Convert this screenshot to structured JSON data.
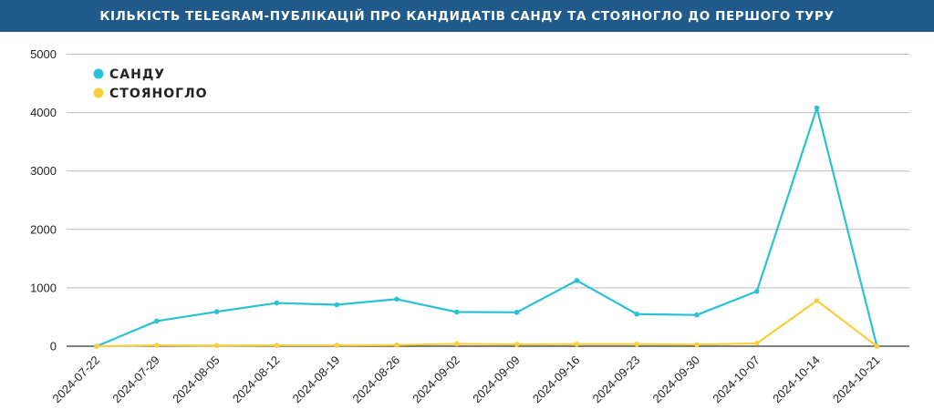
{
  "chart_data": {
    "type": "line",
    "title": "КІЛЬКІСТЬ TELEGRAM-ПУБЛІКАЦІЙ ПРО КАНДИДАТІВ САНДУ ТА СТОЯНОГЛО ДО ПЕРШОГО ТУРУ",
    "x": [
      "2024-07-22",
      "2024-07-29",
      "2024-08-05",
      "2024-08-12",
      "2024-08-19",
      "2024-08-26",
      "2024-09-02",
      "2024-09-09",
      "2024-09-16",
      "2024-09-23",
      "2024-09-30",
      "2024-10-07",
      "2024-10-14",
      "2024-10-21"
    ],
    "yticks": [
      0,
      1000,
      2000,
      3000,
      4000,
      5000
    ],
    "ylim": [
      0,
      5000
    ],
    "grid": true,
    "legend_position": "top-left",
    "series": [
      {
        "name": "САНДУ",
        "color": "#29c1d4",
        "values": [
          0,
          430,
          590,
          740,
          710,
          805,
          585,
          580,
          1125,
          550,
          535,
          940,
          4080,
          0
        ]
      },
      {
        "name": "СТОЯНОГЛО",
        "color": "#f7d03c",
        "values": [
          0,
          15,
          10,
          15,
          15,
          20,
          40,
          30,
          35,
          35,
          25,
          50,
          780,
          0
        ]
      }
    ]
  }
}
